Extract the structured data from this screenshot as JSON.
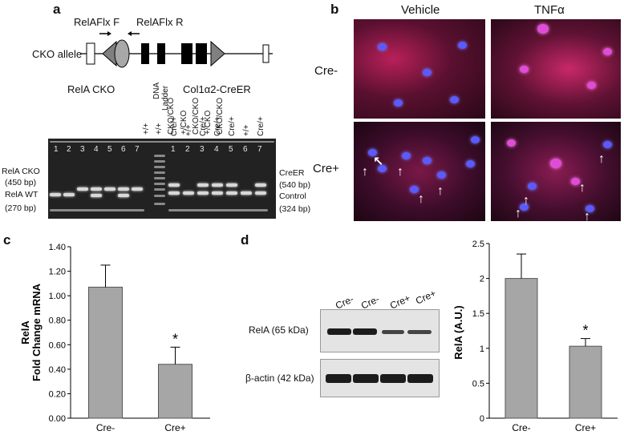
{
  "panels": {
    "a": "a",
    "b": "b",
    "c": "c",
    "d": "d"
  },
  "panel_a": {
    "primer_f": "RelAFlx F",
    "primer_r": "RelAFlx R",
    "allele": "CKO allele",
    "group_left": "RelA CKO",
    "group_right": "Col1α2-CreER",
    "ladder": [
      "DNA",
      "Ladder"
    ],
    "left_genotypes": [
      "+/+",
      "+/+",
      "CKO/CKO",
      "+/CKO",
      "CKO/CKO",
      "+/CKO",
      "CKO/CKO"
    ],
    "right_genotypes": [
      "Cre/+",
      "+/+",
      "Cre/+",
      "Cre/+",
      "Cre/+",
      "+/+",
      "Cre/+"
    ],
    "left_lanes": [
      "1",
      "2",
      "3",
      "4",
      "5",
      "6",
      "7"
    ],
    "right_lanes": [
      "1",
      "2",
      "3",
      "4",
      "5",
      "6",
      "7"
    ],
    "left_labels": {
      "cko": "RelA CKO",
      "cko_bp": "(450 bp)",
      "wt": "RelA WT",
      "wt_bp": "(270 bp)"
    },
    "right_labels": {
      "creer": "CreER",
      "creer_bp": "(540 bp)",
      "control": "Control",
      "control_bp": "(324 bp)"
    }
  },
  "panel_b": {
    "col_vehicle": "Vehicle",
    "col_tnf": "TNFα",
    "row_cre_minus": "Cre-",
    "row_cre_plus": "Cre+"
  },
  "chart_data": [
    {
      "type": "bar",
      "panel": "c",
      "categories": [
        "Cre-",
        "Cre+"
      ],
      "values": [
        1.07,
        0.44
      ],
      "errors": [
        0.18,
        0.14
      ],
      "ylabel": "RelA\nFold Change mRNA",
      "ylabel_line1": "RelA",
      "ylabel_line2": "Fold Change mRNA",
      "ylim": [
        0,
        1.4
      ],
      "yticks": [
        "0.00",
        "0.20",
        "0.40",
        "0.60",
        "0.80",
        "1.00",
        "1.20",
        "1.40"
      ],
      "annotation": "*",
      "bar_color": "#a6a6a6"
    },
    {
      "type": "bar",
      "panel": "d",
      "categories": [
        "Cre-",
        "Cre+"
      ],
      "values": [
        2.0,
        1.03
      ],
      "errors": [
        0.35,
        0.11
      ],
      "ylabel": "RelA (A.U.)",
      "ylim": [
        0,
        2.5
      ],
      "yticks": [
        "0",
        "0.5",
        "1",
        "1.5",
        "2",
        "2.5"
      ],
      "annotation": "*",
      "bar_color": "#a6a6a6"
    }
  ],
  "panel_d_blot": {
    "lanes": [
      "Cre-",
      "Cre-",
      "Cre+",
      "Cre+"
    ],
    "row1": "RelA (65 kDa)",
    "row2": "β-actin (42 kDa)",
    "rela_intensity": [
      1.0,
      0.95,
      0.55,
      0.55
    ]
  }
}
